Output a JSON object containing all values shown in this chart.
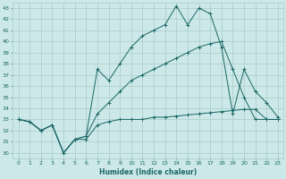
{
  "xlabel": "Humidex (Indice chaleur)",
  "xlim": [
    -0.5,
    23.5
  ],
  "ylim": [
    29.5,
    43.5
  ],
  "xticks": [
    0,
    1,
    2,
    3,
    4,
    5,
    6,
    7,
    8,
    9,
    10,
    11,
    12,
    13,
    14,
    15,
    16,
    17,
    18,
    19,
    20,
    21,
    22,
    23
  ],
  "yticks": [
    30,
    31,
    32,
    33,
    34,
    35,
    36,
    37,
    38,
    39,
    40,
    41,
    42,
    43
  ],
  "bg_color": "#cce8e8",
  "grid_color": "#aacccc",
  "line_color": "#1a6666",
  "lines": [
    {
      "x": [
        0,
        1,
        2,
        3,
        4,
        5,
        6,
        7,
        8,
        9,
        10,
        11,
        12,
        13,
        14,
        15,
        16,
        17,
        18,
        19,
        20,
        21,
        22,
        23
      ],
      "y": [
        33,
        32.8,
        32,
        32.5,
        30,
        31.2,
        31.2,
        32.5,
        32.8,
        33,
        33,
        33,
        33.2,
        33.2,
        33.3,
        33.4,
        33.5,
        33.6,
        33.7,
        33.8,
        33.9,
        33.9,
        33,
        33
      ]
    },
    {
      "x": [
        0,
        1,
        2,
        3,
        4,
        5,
        6,
        7,
        8,
        9,
        10,
        11,
        12,
        13,
        14,
        15,
        16,
        17,
        18,
        19,
        20,
        21,
        22,
        23
      ],
      "y": [
        33,
        32.8,
        32,
        32.5,
        30,
        31.2,
        31.5,
        33.5,
        34.5,
        35.5,
        36.5,
        37,
        37.5,
        38,
        38.5,
        39,
        39.5,
        39.8,
        40,
        37.5,
        35,
        33,
        33,
        33
      ]
    },
    {
      "x": [
        0,
        1,
        2,
        3,
        4,
        5,
        6,
        7,
        8,
        9,
        10,
        11,
        12,
        13,
        14,
        15,
        16,
        17,
        18,
        19,
        20,
        21,
        22,
        23
      ],
      "y": [
        33,
        32.8,
        32,
        32.5,
        30,
        31.2,
        31.5,
        37.5,
        36.5,
        38,
        39.5,
        40.5,
        41,
        41.5,
        43.2,
        41.5,
        43,
        42.5,
        39.5,
        33.5,
        37.5,
        35.5,
        34.5,
        33.2
      ]
    }
  ]
}
